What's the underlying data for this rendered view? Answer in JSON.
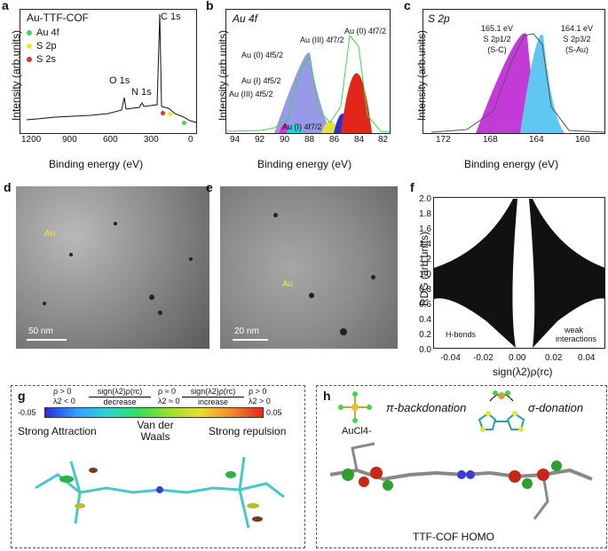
{
  "panels": {
    "a": {
      "letter": "a",
      "inset_title": "Au-TTF-COF",
      "legend": [
        "Au 4f",
        "S 2p",
        "S 2s"
      ],
      "legend_colors": [
        "#3fd64b",
        "#e9e93a",
        "#d8352a"
      ],
      "peaks": [
        "C 1s",
        "O 1s",
        "N 1s"
      ],
      "ylabel": "Intensity (arb.units)",
      "xlabel": "Binding energy (eV)",
      "xticks": [
        "1200",
        "900",
        "600",
        "300",
        "0"
      ]
    },
    "b": {
      "letter": "b",
      "inset_title": "Au 4f",
      "ylabel": "Intensity (arb.units)",
      "xlabel": "Binding energy (eV)",
      "xticks": [
        "94",
        "92",
        "90",
        "88",
        "86",
        "84",
        "82"
      ],
      "labels": [
        "Au (0) 4f7/2",
        "Au (III) 4f7/2",
        "Au (0) 4f5/2",
        "Au (I) 4f5/2",
        "Au (III) 4f5/2",
        "Au (I) 4f7/2"
      ]
    },
    "c": {
      "letter": "c",
      "inset_title": "S 2p",
      "ylabel": "Intensity (arb.units)",
      "xlabel": "Binding energy (eV)",
      "xticks": [
        "172",
        "168",
        "164",
        "160"
      ],
      "labels": [
        "165.1 eV",
        "S 2p1/2",
        "(S-C)",
        "164.1 eV",
        "S 2p3/2",
        "(S-Au)"
      ]
    },
    "d": {
      "letter": "d",
      "au": "Au",
      "scale": "50 nm"
    },
    "e": {
      "letter": "e",
      "au": "Au",
      "scale": "20 nm"
    },
    "f": {
      "letter": "f",
      "ylabel": "RDG (arb.units)",
      "xlabel": "sign(λ2)ρ(rc)",
      "yticks": [
        "2.0",
        "1.8",
        "1.6",
        "1.4",
        "1.2",
        "1.0",
        "0.8",
        "0.6",
        "0.4",
        "0.2",
        "0.0"
      ],
      "xticks": [
        "-0.04",
        "-0.02",
        "0.00",
        "0.02",
        "0.04"
      ],
      "notes": [
        "H-bonds",
        "weak",
        "interactions"
      ]
    },
    "g": {
      "letter": "g",
      "left_cond": [
        "ρ > 0",
        "λ2 < 0"
      ],
      "mid_cond": [
        "ρ ≈ 0",
        "λ2 ≈ 0"
      ],
      "right_cond": [
        "ρ > 0",
        "λ2 > 0"
      ],
      "arrow_left_top": "sign(λ2)ρ(rc)",
      "arrow_left_bot": "decrease",
      "arrow_right_top": "sign(λ2)ρ(rc)",
      "arrow_right_bot": "increase",
      "cmin": "-0.05",
      "cmax": "0.05",
      "strong_attr": "Strong Attraction",
      "vdw_1": "Van der",
      "vdw_2": "Waals",
      "strong_rep": "Strong repulsion"
    },
    "h": {
      "letter": "h",
      "aucl": "AuCl4-",
      "pi": "π-backdonation",
      "sigma": "σ-donation",
      "homo": "TTF-COF HOMO"
    }
  }
}
